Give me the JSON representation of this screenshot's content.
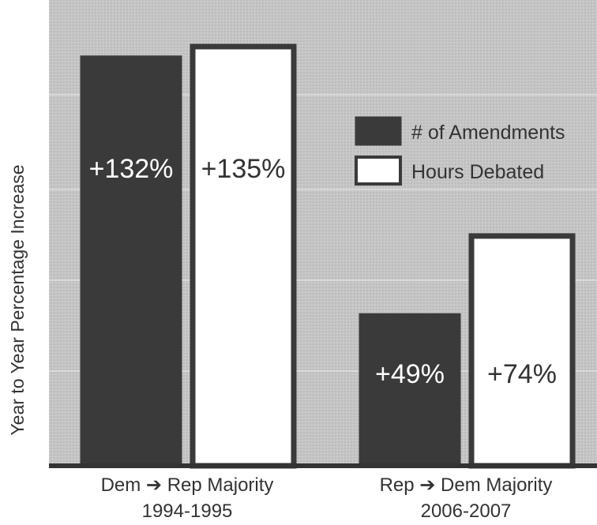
{
  "chart_data": {
    "type": "bar",
    "title": "",
    "xlabel": "",
    "ylabel": "Year to Year Percentage Increase",
    "categories": [
      {
        "line1": "Dem",
        "arrow": "➔",
        "line1b": "Rep Majority",
        "line2": "1994-1995"
      },
      {
        "line1": "Rep",
        "arrow": "➔",
        "line1b": "Dem Majority",
        "line2": "2006-2007"
      }
    ],
    "series": [
      {
        "name": "# of Amendments",
        "values": [
          132,
          49
        ],
        "labels": [
          "+132%",
          "+49%"
        ],
        "color": "#3a3a3a"
      },
      {
        "name": "Hours Debated",
        "values": [
          135,
          74
        ],
        "labels": [
          "+135%",
          "+74%"
        ],
        "color": "#ffffff"
      }
    ],
    "ylim": [
      0,
      150
    ],
    "grid": true,
    "legend": "right",
    "colors": {
      "background": "#c9c9c9",
      "bar_outline": "#3a3a3a",
      "grid": "#eeeeee"
    }
  }
}
